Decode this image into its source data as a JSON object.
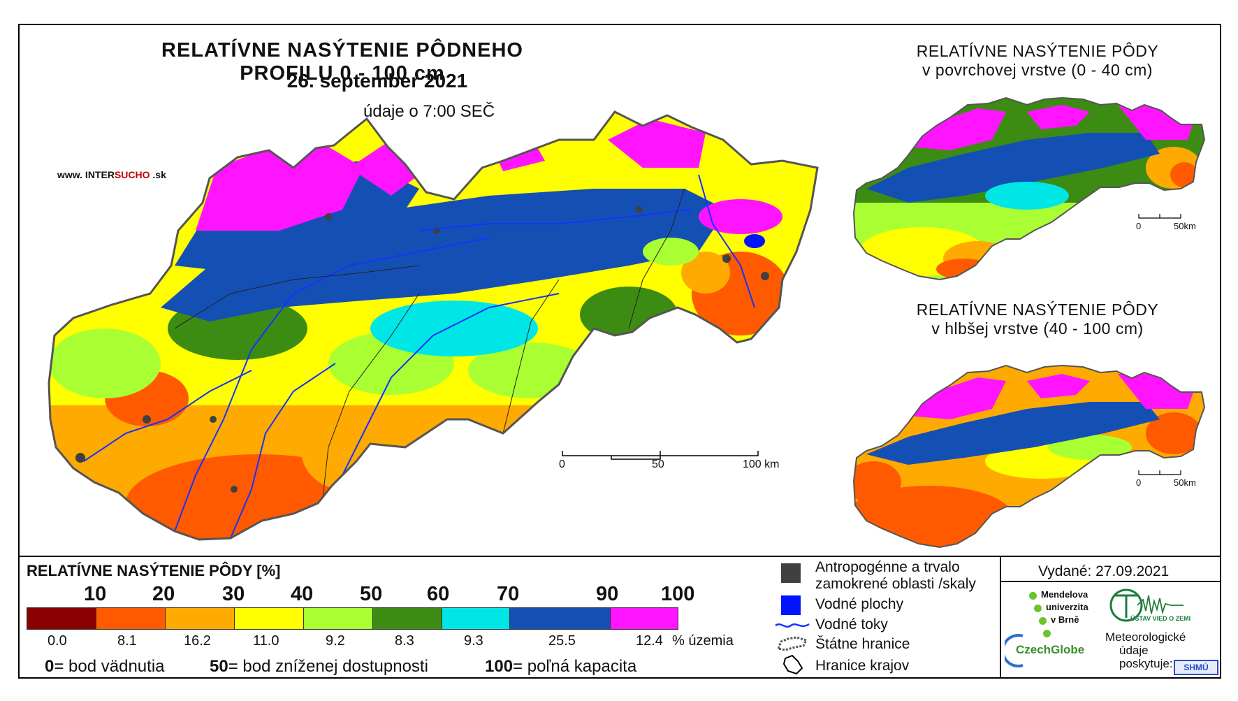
{
  "header": {
    "title": "RELATÍVNE NASÝTENIE PÔDNEHO PROFILU 0 - 100 cm",
    "date": "26. september 2021",
    "time": "údaje o 7:00 SEČ",
    "website_prefix": "www. INTER",
    "website_highlight": "SUCHO",
    "website_suffix": " .sk"
  },
  "side_maps": {
    "surface_title_line1": "RELATÍVNE NASÝTENIE PÔDY",
    "surface_title_line2": "v povrchovej vrstve (0 - 40 cm)",
    "deep_title_line1": "RELATÍVNE NASÝTENIE PÔDY",
    "deep_title_line2": "v hlbšej vrstve (40 - 100 cm)",
    "scale_zero": "0",
    "scale_end": "50km"
  },
  "main_scale": {
    "label_0": "0",
    "label_50": "50",
    "label_100": "100 km"
  },
  "legend": {
    "title": "RELATÍVNE NASÝTENIE PÔDY [%]",
    "thresholds": [
      "10",
      "20",
      "30",
      "40",
      "50",
      "60",
      "70",
      "90",
      "100"
    ],
    "classes": [
      {
        "color": "#8b0000",
        "share": "0.0"
      },
      {
        "color": "#ff5a00",
        "share": "8.1"
      },
      {
        "color": "#ffaa00",
        "share": "16.2"
      },
      {
        "color": "#ffff00",
        "share": "11.0"
      },
      {
        "color": "#aaff32",
        "share": "9.2"
      },
      {
        "color": "#3c8c14",
        "share": "8.3"
      },
      {
        "color": "#00e6e6",
        "share": "9.3"
      },
      {
        "color": "#1450b4",
        "share": "25.5"
      },
      {
        "color": "#ff14ff",
        "share": "12.4"
      }
    ],
    "share_unit": "% územia",
    "note_0_value": "0",
    "note_0_text": "= bod vädnutia",
    "note_50_value": "50",
    "note_50_text": "= bod zníženej dostupnosti",
    "note_100_value": "100",
    "note_100_text": "= poľná kapacita"
  },
  "map_legend": {
    "anthropogenic": "Antropogénne a trvalo",
    "anthropogenic_line2": "zamokrené oblasti /skaly",
    "water_bodies": "Vodné plochy",
    "rivers": "Vodné toky",
    "state_border": "Štátne hranice",
    "region_border": "Hranice krajov",
    "anthropogenic_color": "#404040",
    "water_color": "#0014ff",
    "river_color": "#1432ff"
  },
  "credits": {
    "issued": "Vydané: 27.09.2021",
    "mendel_line1": "Mendelova",
    "mendel_line2": "univerzita",
    "mendel_line3": "v Brně",
    "ustav": "ÚSTAV VIED O ZEMI",
    "czechglobe": "CzechGlobe",
    "meteo_line1": "Meteorologické",
    "meteo_line2": "údaje",
    "meteo_line3": "poskytuje:",
    "shmu": "SHMÚ"
  }
}
